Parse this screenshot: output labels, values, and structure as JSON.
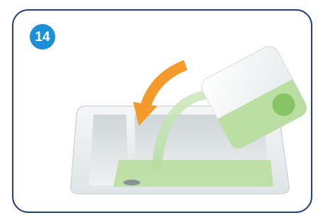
{
  "step": {
    "number": "14"
  }
}
